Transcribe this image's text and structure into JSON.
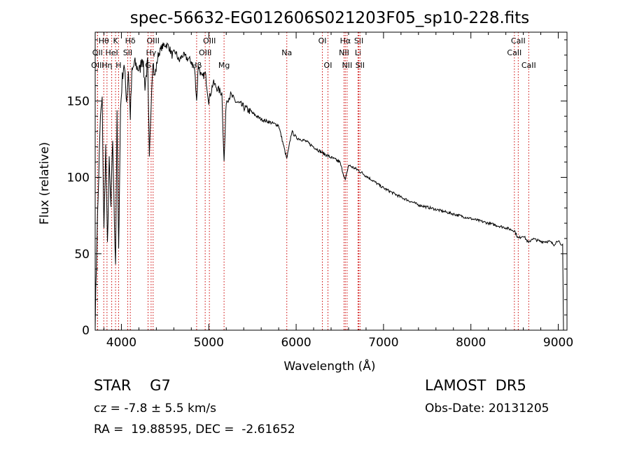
{
  "chart_data": {
    "type": "line",
    "title": "spec-56632-EG012606S021203F05_sp10-228.fits",
    "xlabel": "Wavelength (Å)",
    "ylabel": "Flux (relative)",
    "xlim": [
      3700,
      9100
    ],
    "ylim": [
      0,
      195
    ],
    "xticks": [
      4000,
      5000,
      6000,
      7000,
      8000,
      9000
    ],
    "yticks": [
      0,
      50,
      100,
      150
    ],
    "grid": false,
    "line_color": "#000000",
    "marker_color": "#cc0000",
    "spectrum": {
      "x": [
        3700,
        3720,
        3740,
        3760,
        3780,
        3800,
        3820,
        3840,
        3860,
        3880,
        3900,
        3920,
        3933,
        3950,
        3968,
        3990,
        4010,
        4030,
        4060,
        4080,
        4102,
        4120,
        4150,
        4180,
        4210,
        4240,
        4270,
        4300,
        4320,
        4340,
        4360,
        4380,
        4420,
        4460,
        4500,
        4540,
        4580,
        4620,
        4660,
        4700,
        4750,
        4800,
        4840,
        4861,
        4880,
        4920,
        4960,
        5000,
        5050,
        5100,
        5150,
        5175,
        5200,
        5250,
        5300,
        5400,
        5500,
        5600,
        5700,
        5800,
        5893,
        5950,
        6000,
        6100,
        6200,
        6300,
        6400,
        6500,
        6563,
        6600,
        6700,
        6800,
        6900,
        7000,
        7200,
        7400,
        7600,
        7800,
        8000,
        8200,
        8400,
        8500,
        8542,
        8600,
        8662,
        8700,
        8800,
        8900,
        8950,
        9000,
        9030,
        9050,
        9060
      ],
      "y": [
        5,
        60,
        100,
        140,
        150,
        65,
        120,
        55,
        110,
        80,
        125,
        70,
        45,
        140,
        50,
        145,
        165,
        175,
        150,
        170,
        140,
        168,
        175,
        172,
        170,
        180,
        160,
        175,
        110,
        150,
        178,
        165,
        180,
        185,
        187,
        186,
        180,
        182,
        176,
        180,
        178,
        176,
        170,
        150,
        174,
        165,
        168,
        150,
        162,
        158,
        155,
        110,
        150,
        154,
        150,
        146,
        142,
        138,
        136,
        134,
        112,
        130,
        126,
        124,
        120,
        116,
        113,
        110,
        98,
        108,
        105,
        101,
        97,
        93,
        87,
        82,
        79,
        76,
        73,
        70,
        67,
        65,
        60,
        62,
        57,
        60,
        58,
        58,
        56,
        59,
        55,
        56,
        0
      ]
    },
    "line_markers": [
      {
        "label": "Hθ",
        "x": 3798,
        "row": 1
      },
      {
        "label": "OII",
        "x": 3727,
        "row": 2
      },
      {
        "label": "OIII",
        "x": 3727,
        "row": 3
      },
      {
        "label": "K",
        "x": 3933,
        "row": 1
      },
      {
        "label": "HeI",
        "x": 3889,
        "row": 2
      },
      {
        "label": "Hη",
        "x": 3835,
        "row": 3
      },
      {
        "label": "Hδ",
        "x": 4102,
        "row": 1
      },
      {
        "label": "SII",
        "x": 4072,
        "row": 2
      },
      {
        "label": "H",
        "x": 3968,
        "row": 3
      },
      {
        "label": "OIII",
        "x": 4363,
        "row": 1
      },
      {
        "label": "Hγ",
        "x": 4340,
        "row": 2
      },
      {
        "label": "G",
        "x": 4305,
        "row": 3
      },
      {
        "label": "OIII",
        "x": 5007,
        "row": 1
      },
      {
        "label": "OIII",
        "x": 4959,
        "row": 2
      },
      {
        "label": "Hβ",
        "x": 4861,
        "row": 3
      },
      {
        "label": "Mg",
        "x": 5175,
        "row": 3
      },
      {
        "label": "Na",
        "x": 5893,
        "row": 2
      },
      {
        "label": "OI",
        "x": 6300,
        "row": 1
      },
      {
        "label": "OI",
        "x": 6364,
        "row": 3
      },
      {
        "label": "Hα",
        "x": 6563,
        "row": 1
      },
      {
        "label": "SII",
        "x": 6717,
        "row": 1
      },
      {
        "label": "NII",
        "x": 6548,
        "row": 2
      },
      {
        "label": "Li",
        "x": 6708,
        "row": 2
      },
      {
        "label": "NII",
        "x": 6583,
        "row": 3
      },
      {
        "label": "SII",
        "x": 6731,
        "row": 3
      },
      {
        "label": "CaII",
        "x": 8542,
        "row": 1
      },
      {
        "label": "CaII",
        "x": 8498,
        "row": 2
      },
      {
        "label": "CaII",
        "x": 8662,
        "row": 3
      }
    ]
  },
  "footer": {
    "object_class": "STAR    G7",
    "survey": "LAMOST  DR5",
    "redshift": "cz = -7.8 ± 5.5 km/s",
    "obs_date": "Obs-Date: 20131205",
    "coords": "RA =  19.88595, DEC =  -2.61652"
  }
}
